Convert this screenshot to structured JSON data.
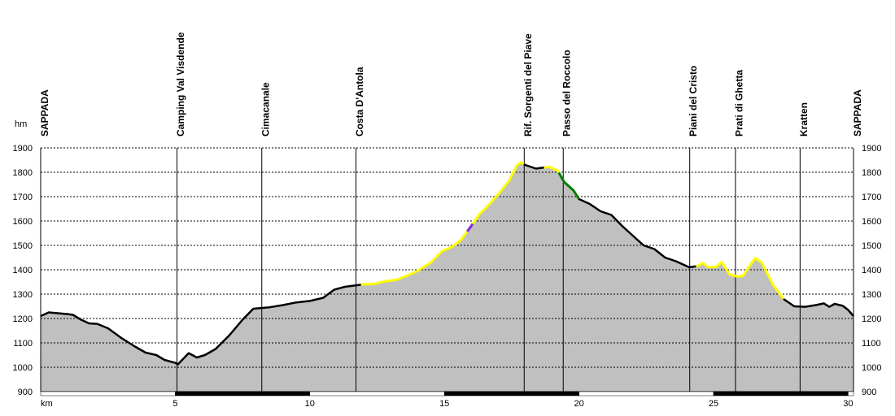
{
  "chart_data": {
    "type": "area",
    "y_unit": "hm",
    "x_unit": "km",
    "xlim": [
      0,
      30.2
    ],
    "ylim": [
      900,
      1900
    ],
    "y_ticks": [
      900,
      1000,
      1100,
      1200,
      1300,
      1400,
      1500,
      1600,
      1700,
      1800,
      1900
    ],
    "x_ticks": [
      5,
      10,
      15,
      20,
      25,
      30
    ],
    "grid": true,
    "colors": {
      "fill": "#c0c0c0",
      "line": "#000000",
      "grid": "#000000",
      "highlight_yellow": "#ffff00",
      "highlight_green": "#008000",
      "highlight_purple": "#7b2cd8"
    },
    "waypoints": [
      {
        "label": "SAPPADA",
        "x": 0.0
      },
      {
        "label": "Camping Val Visdende",
        "x": 5.05
      },
      {
        "label": "Cimacanale",
        "x": 8.2
      },
      {
        "label": "Costa D'Antola",
        "x": 11.7
      },
      {
        "label": "Rif. Sorgenti del Piave",
        "x": 17.95
      },
      {
        "label": "Passo del Roccolo",
        "x": 19.4
      },
      {
        "label": "Piani del Cristo",
        "x": 24.1
      },
      {
        "label": "Prati di Ghetta",
        "x": 25.8
      },
      {
        "label": "Kratten",
        "x": 28.2
      },
      {
        "label": "SAPPADA",
        "x": 30.2
      }
    ],
    "profile": [
      [
        0,
        1210
      ],
      [
        0.3,
        1225
      ],
      [
        0.6,
        1222
      ],
      [
        1.0,
        1218
      ],
      [
        1.2,
        1215
      ],
      [
        1.5,
        1195
      ],
      [
        1.8,
        1180
      ],
      [
        2.1,
        1178
      ],
      [
        2.5,
        1160
      ],
      [
        3.0,
        1120
      ],
      [
        3.5,
        1085
      ],
      [
        3.9,
        1060
      ],
      [
        4.3,
        1050
      ],
      [
        4.6,
        1030
      ],
      [
        5.0,
        1018
      ],
      [
        5.1,
        1012
      ],
      [
        5.3,
        1035
      ],
      [
        5.5,
        1058
      ],
      [
        5.8,
        1040
      ],
      [
        6.1,
        1050
      ],
      [
        6.5,
        1075
      ],
      [
        7.0,
        1130
      ],
      [
        7.5,
        1195
      ],
      [
        7.9,
        1240
      ],
      [
        8.2,
        1243
      ],
      [
        8.5,
        1246
      ],
      [
        9.0,
        1255
      ],
      [
        9.5,
        1266
      ],
      [
        10.0,
        1272
      ],
      [
        10.5,
        1285
      ],
      [
        10.9,
        1318
      ],
      [
        11.3,
        1330
      ],
      [
        11.7,
        1336
      ],
      [
        12.0,
        1340
      ],
      [
        12.4,
        1342
      ],
      [
        12.8,
        1353
      ],
      [
        13.2,
        1358
      ],
      [
        13.6,
        1375
      ],
      [
        14.0,
        1395
      ],
      [
        14.5,
        1430
      ],
      [
        14.9,
        1475
      ],
      [
        15.3,
        1495
      ],
      [
        15.6,
        1520
      ],
      [
        16.0,
        1580
      ],
      [
        16.3,
        1628
      ],
      [
        16.6,
        1660
      ],
      [
        17.0,
        1710
      ],
      [
        17.4,
        1765
      ],
      [
        17.7,
        1830
      ],
      [
        17.85,
        1840
      ],
      [
        18.0,
        1830
      ],
      [
        18.4,
        1815
      ],
      [
        18.9,
        1822
      ],
      [
        19.2,
        1808
      ],
      [
        19.45,
        1760
      ],
      [
        19.8,
        1725
      ],
      [
        20.0,
        1690
      ],
      [
        20.4,
        1670
      ],
      [
        20.8,
        1640
      ],
      [
        21.2,
        1625
      ],
      [
        21.6,
        1580
      ],
      [
        22.0,
        1540
      ],
      [
        22.4,
        1500
      ],
      [
        22.8,
        1485
      ],
      [
        23.2,
        1450
      ],
      [
        23.6,
        1435
      ],
      [
        24.1,
        1410
      ],
      [
        24.4,
        1415
      ],
      [
        24.6,
        1428
      ],
      [
        24.8,
        1410
      ],
      [
        25.1,
        1412
      ],
      [
        25.3,
        1432
      ],
      [
        25.6,
        1380
      ],
      [
        25.9,
        1372
      ],
      [
        26.1,
        1375
      ],
      [
        26.3,
        1410
      ],
      [
        26.55,
        1448
      ],
      [
        26.8,
        1428
      ],
      [
        27.2,
        1340
      ],
      [
        27.6,
        1280
      ],
      [
        28.0,
        1250
      ],
      [
        28.4,
        1248
      ],
      [
        28.8,
        1255
      ],
      [
        29.1,
        1262
      ],
      [
        29.3,
        1248
      ],
      [
        29.5,
        1260
      ],
      [
        29.8,
        1252
      ],
      [
        30.0,
        1235
      ],
      [
        30.2,
        1210
      ]
    ],
    "highlights": [
      {
        "color": "highlight_yellow",
        "from": 11.9,
        "to": 15.85
      },
      {
        "color": "highlight_purple",
        "from": 15.85,
        "to": 16.05
      },
      {
        "color": "highlight_yellow",
        "from": 16.05,
        "to": 17.95
      },
      {
        "color": "highlight_yellow",
        "from": 18.7,
        "to": 19.25
      },
      {
        "color": "highlight_green",
        "from": 19.25,
        "to": 20.0
      },
      {
        "color": "highlight_yellow",
        "from": 24.35,
        "to": 27.6
      }
    ]
  }
}
